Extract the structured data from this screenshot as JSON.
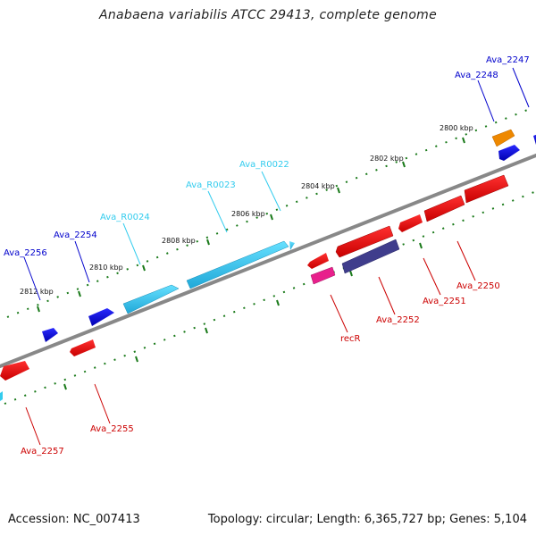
{
  "title": "Anabaena variabilis ATCC 29413, complete genome",
  "footer": {
    "accession": "Accession: NC_007413",
    "topology": "Topology: circular; Length: 6,365,727 bp; Genes: 5,104"
  },
  "ticks": [
    "2800 kbp",
    "2802 kbp",
    "2804 kbp",
    "2806 kbp",
    "2808 kbp",
    "2810 kbp",
    "2812 kbp"
  ],
  "genes": [
    {
      "label": "Ava_2247",
      "color": "#0000cc"
    },
    {
      "label": "Ava_2248",
      "color": "#0000cc"
    },
    {
      "label": "Ava_R0022",
      "color": "#33ccee"
    },
    {
      "label": "Ava_R0023",
      "color": "#33ccee"
    },
    {
      "label": "Ava_R0024",
      "color": "#33ccee"
    },
    {
      "label": "Ava_2254",
      "color": "#0000cc"
    },
    {
      "label": "Ava_2256",
      "color": "#0000cc"
    },
    {
      "label": "recR",
      "color": "#cc0000"
    },
    {
      "label": "Ava_2252",
      "color": "#cc0000"
    },
    {
      "label": "Ava_2251",
      "color": "#cc0000"
    },
    {
      "label": "Ava_2250",
      "color": "#cc0000"
    },
    {
      "label": "Ava_2255",
      "color": "#cc0000"
    },
    {
      "label": "Ava_2257",
      "color": "#cc0000"
    }
  ]
}
